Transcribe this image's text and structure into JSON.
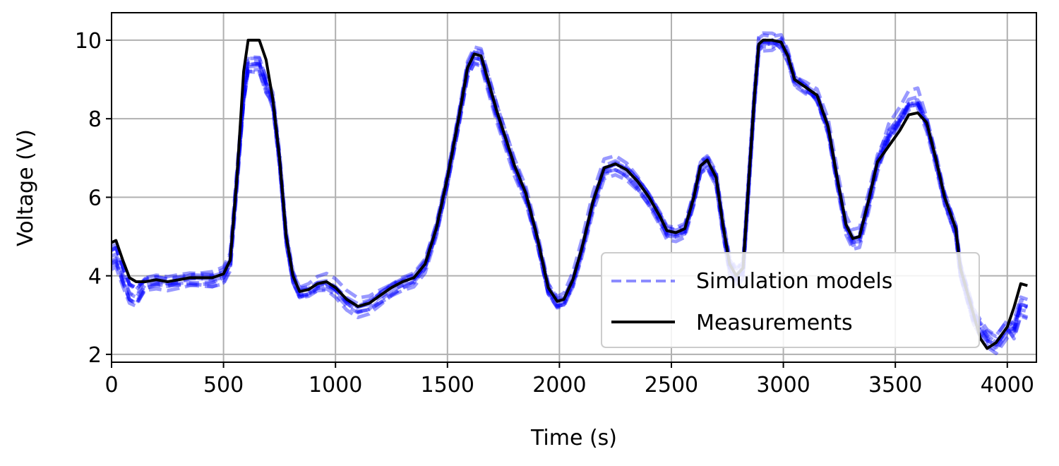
{
  "chart_data": {
    "type": "line",
    "xlabel": "Time (s)",
    "ylabel": "Voltage (V)",
    "xlim": [
      0,
      4130
    ],
    "ylim": [
      1.8,
      10.7
    ],
    "xticks": [
      0,
      500,
      1000,
      1500,
      2000,
      2500,
      3000,
      3500,
      4000
    ],
    "yticks": [
      2,
      4,
      6,
      8,
      10
    ],
    "grid": true,
    "legend_position": "lower-right",
    "series": [
      {
        "name": "Measurements",
        "color": "#000000",
        "style": "solid",
        "x": [
          0,
          20,
          50,
          80,
          110,
          150,
          200,
          250,
          300,
          350,
          400,
          450,
          500,
          530,
          560,
          590,
          610,
          630,
          660,
          690,
          720,
          750,
          780,
          810,
          840,
          880,
          920,
          960,
          1000,
          1050,
          1100,
          1150,
          1200,
          1250,
          1300,
          1350,
          1400,
          1450,
          1500,
          1550,
          1590,
          1620,
          1650,
          1680,
          1720,
          1760,
          1800,
          1850,
          1900,
          1950,
          1990,
          2020,
          2060,
          2100,
          2150,
          2200,
          2250,
          2300,
          2350,
          2400,
          2450,
          2480,
          2520,
          2560,
          2600,
          2630,
          2660,
          2700,
          2730,
          2760,
          2790,
          2820,
          2850,
          2870,
          2890,
          2910,
          2950,
          2990,
          3020,
          3050,
          3100,
          3150,
          3200,
          3240,
          3280,
          3310,
          3340,
          3380,
          3420,
          3470,
          3520,
          3560,
          3600,
          3640,
          3680,
          3720,
          3770,
          3790,
          3820,
          3850,
          3880,
          3910,
          3950,
          4000,
          4030,
          4060,
          4090
        ],
        "values": [
          4.85,
          4.9,
          4.4,
          3.95,
          3.85,
          3.85,
          3.9,
          3.85,
          3.9,
          3.95,
          3.95,
          3.95,
          4.05,
          4.4,
          6.5,
          9.2,
          10.0,
          10.0,
          10.0,
          9.5,
          8.5,
          7.0,
          5.0,
          4.0,
          3.6,
          3.65,
          3.8,
          3.85,
          3.7,
          3.4,
          3.22,
          3.3,
          3.5,
          3.7,
          3.85,
          3.95,
          4.3,
          5.2,
          6.5,
          8.0,
          9.3,
          9.65,
          9.6,
          9.0,
          8.2,
          7.5,
          6.8,
          6.1,
          5.0,
          3.7,
          3.35,
          3.4,
          3.9,
          4.7,
          5.9,
          6.75,
          6.85,
          6.7,
          6.4,
          6.0,
          5.5,
          5.15,
          5.1,
          5.2,
          6.0,
          6.8,
          6.95,
          6.5,
          5.3,
          4.3,
          4.0,
          4.2,
          6.8,
          8.5,
          9.9,
          10.0,
          10.0,
          9.95,
          9.6,
          9.0,
          8.8,
          8.6,
          7.8,
          6.5,
          5.3,
          4.95,
          5.0,
          5.9,
          6.9,
          7.3,
          7.7,
          8.1,
          8.15,
          7.9,
          7.0,
          6.0,
          5.2,
          4.2,
          3.6,
          3.0,
          2.4,
          2.15,
          2.3,
          2.7,
          3.2,
          3.8,
          3.75
        ]
      }
    ],
    "simulation_series": {
      "name": "Simulation models",
      "color": "#0000ff",
      "style": "dashed",
      "count": 10
    }
  }
}
